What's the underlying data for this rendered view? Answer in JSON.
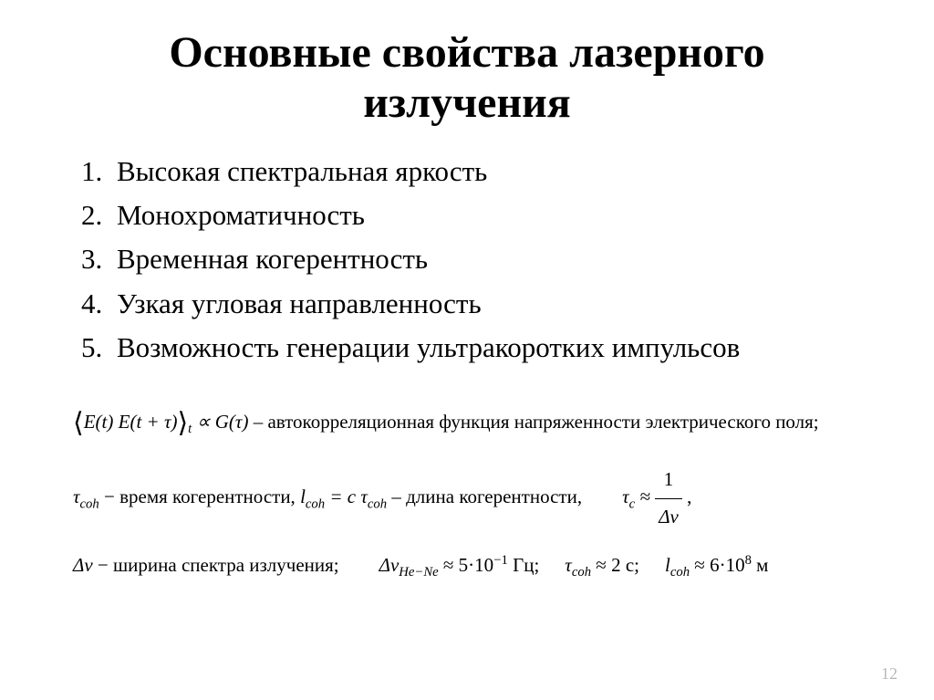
{
  "title_line1": "Основные свойства лазерного",
  "title_line2": "излучения",
  "properties": [
    "Высокая спектральная яркость",
    "Монохроматичность",
    "Временная когерентность",
    "Узкая угловая направленность",
    "Возможность генерации ультракоротких импульсов"
  ],
  "formula1": {
    "expr_left_open": "⟨",
    "expr_inner": "E(t) E(t + τ)",
    "expr_right_close": "⟩",
    "expr_sub": "t",
    "prop": " ∝ G(τ)",
    "desc": " – автокорреляционная функция напряженности электрического поля;"
  },
  "formula2": {
    "tau_coh": "τ",
    "tau_coh_sub": "coh",
    "tau_desc": " −  время когерентности, ",
    "l_coh": "l",
    "l_coh_sub": "coh",
    "eq1": " = c τ",
    "eq1_sub": "coh",
    "l_desc": " – длина когерентности,",
    "tau_c": "τ",
    "tau_c_sub": "c",
    "approx": " ≈ ",
    "frac_num": "1",
    "frac_den": "Δν",
    "comma": " ,"
  },
  "formula3": {
    "dnu": "Δν",
    "dnu_desc": " − ширина спектра излучения;",
    "dnu_hene": "Δν",
    "hene_sub": "He−Ne",
    "hene_val": " ≈ 5·10",
    "hene_exp": "−1",
    "hene_unit": " Гц;",
    "tau_coh": "τ",
    "tau_coh_sub": "coh",
    "tau_val": " ≈ 2 c;",
    "l_coh": "l",
    "l_coh_sub": "coh",
    "l_val": " ≈ 6·10",
    "l_exp": "8",
    "l_unit": " м"
  },
  "page_number": "12",
  "style": {
    "bg_color": "#ffffff",
    "text_color": "#000000",
    "page_num_color": "#b8b8b8",
    "title_fontsize": 48,
    "list_fontsize": 31,
    "formula_fontsize": 21
  }
}
